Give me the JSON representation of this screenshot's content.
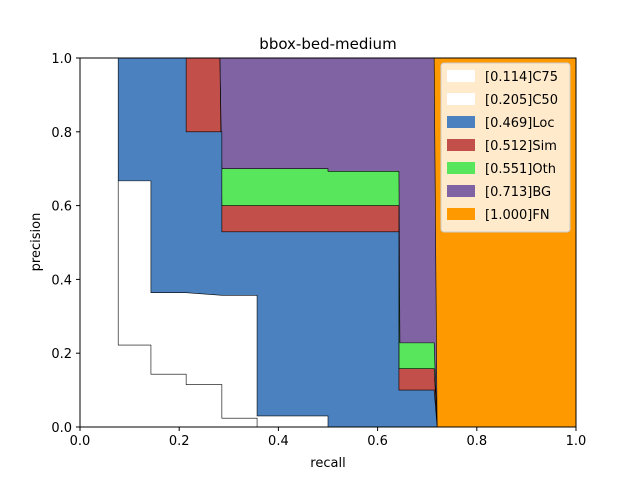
{
  "chart_data": {
    "type": "area",
    "title": "bbox-bed-medium",
    "xlabel": "recall",
    "ylabel": "precision",
    "xlim": [
      0,
      1
    ],
    "ylim": [
      0,
      1
    ],
    "xticks": [
      "0.0",
      "0.2",
      "0.4",
      "0.6",
      "0.8",
      "1.0"
    ],
    "yticks": [
      "0.0",
      "0.2",
      "0.4",
      "0.6",
      "0.8",
      "1.0"
    ],
    "grid": false,
    "legend_position": "top-right",
    "series": [
      {
        "name": "[0.114]C75",
        "color": "#ffffff",
        "points": [
          [
            0,
            1
          ],
          [
            0.077,
            1
          ],
          [
            0.077,
            0.222
          ],
          [
            0.143,
            0.222
          ],
          [
            0.143,
            0.143
          ],
          [
            0.214,
            0.143
          ],
          [
            0.214,
            0.115
          ],
          [
            0.286,
            0.115
          ],
          [
            0.286,
            0.024
          ],
          [
            0.357,
            0.024
          ],
          [
            0.357,
            0
          ],
          [
            1,
            0
          ]
        ]
      },
      {
        "name": "[0.205]C50",
        "color": "#ffffff",
        "points": [
          [
            0,
            1
          ],
          [
            0.071,
            1
          ],
          [
            0.077,
            0.667
          ],
          [
            0.143,
            0.667
          ],
          [
            0.143,
            0.364
          ],
          [
            0.214,
            0.364
          ],
          [
            0.286,
            0.357
          ],
          [
            0.357,
            0.357
          ],
          [
            0.357,
            0.03
          ],
          [
            0.5,
            0.03
          ],
          [
            0.5,
            0
          ],
          [
            1,
            0
          ]
        ]
      },
      {
        "name": "[0.469]Loc",
        "color": "#4c81bf",
        "points": [
          [
            0,
            1
          ],
          [
            0.071,
            1
          ],
          [
            0.071,
            1
          ],
          [
            0.214,
            1
          ],
          [
            0.214,
            0.8
          ],
          [
            0.286,
            0.8
          ],
          [
            0.286,
            0.529
          ],
          [
            0.643,
            0.529
          ],
          [
            0.643,
            0.1
          ],
          [
            0.714,
            0.1
          ],
          [
            0.72,
            0
          ],
          [
            1,
            0
          ]
        ]
      },
      {
        "name": "[0.512]Sim",
        "color": "#c24f49",
        "points": [
          [
            0,
            1
          ],
          [
            0.282,
            1
          ],
          [
            0.286,
            0.6
          ],
          [
            0.643,
            0.6
          ],
          [
            0.643,
            0.158
          ],
          [
            0.714,
            0.158
          ],
          [
            0.72,
            0
          ],
          [
            1,
            0
          ]
        ]
      },
      {
        "name": "[0.551]Oth",
        "color": "#58e65c",
        "points": [
          [
            0,
            1
          ],
          [
            0.282,
            1
          ],
          [
            0.286,
            0.7
          ],
          [
            0.5,
            0.7
          ],
          [
            0.5,
            0.693
          ],
          [
            0.643,
            0.693
          ],
          [
            0.645,
            0.228
          ],
          [
            0.714,
            0.228
          ],
          [
            0.72,
            0
          ],
          [
            1,
            0
          ]
        ]
      },
      {
        "name": "[0.713]BG",
        "color": "#8063a3",
        "points": [
          [
            0,
            1
          ],
          [
            0.714,
            1
          ],
          [
            0.72,
            0
          ],
          [
            1,
            0
          ]
        ]
      },
      {
        "name": "[1.000]FN",
        "color": "#ff9900",
        "points": [
          [
            0,
            1
          ],
          [
            1,
            1
          ],
          [
            1,
            0
          ]
        ]
      }
    ]
  }
}
